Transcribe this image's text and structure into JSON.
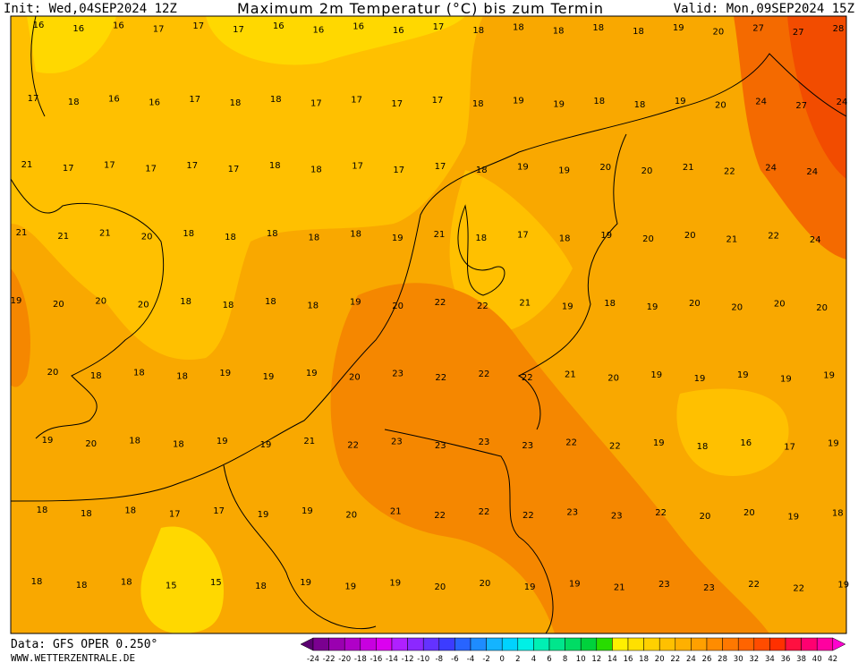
{
  "header": {
    "init": "Init: Wed,04SEP2024 12Z",
    "title": "Maximum 2m Temperatur (°C) bis zum Termin",
    "valid": "Valid: Mon,09SEP2024 15Z"
  },
  "map": {
    "rows": [
      [
        16,
        16,
        16,
        17,
        17,
        17,
        16,
        16,
        16,
        16,
        17,
        18,
        18,
        18,
        18,
        18,
        19,
        20,
        27,
        27,
        28
      ],
      [
        17,
        18,
        16,
        16,
        17,
        18,
        18,
        17,
        17,
        17,
        17,
        18,
        19,
        19,
        18,
        18,
        19,
        20,
        24,
        27,
        24
      ],
      [
        21,
        17,
        17,
        17,
        17,
        17,
        18,
        18,
        17,
        17,
        17,
        18,
        19,
        19,
        20,
        20,
        21,
        22,
        24,
        24
      ],
      [
        21,
        21,
        21,
        20,
        18,
        18,
        18,
        18,
        18,
        19,
        21,
        18,
        17,
        18,
        19,
        20,
        20,
        21,
        22,
        24
      ],
      [
        19,
        20,
        20,
        20,
        18,
        18,
        18,
        18,
        19,
        20,
        22,
        22,
        21,
        19,
        18,
        19,
        20,
        20,
        20,
        20
      ],
      [
        20,
        18,
        18,
        18,
        19,
        19,
        19,
        20,
        23,
        22,
        22,
        22,
        21,
        20,
        19,
        19,
        19,
        19,
        19
      ],
      [
        19,
        20,
        18,
        18,
        19,
        19,
        21,
        22,
        23,
        23,
        23,
        23,
        22,
        22,
        19,
        18,
        16,
        17,
        19
      ],
      [
        18,
        18,
        18,
        17,
        17,
        19,
        19,
        20,
        21,
        22,
        22,
        22,
        23,
        23,
        22,
        20,
        20,
        19,
        18
      ],
      [
        18,
        18,
        18,
        15,
        15,
        18,
        19,
        19,
        19,
        20,
        20,
        19,
        19,
        21,
        23,
        23,
        22,
        22,
        19
      ]
    ]
  },
  "colorbar": {
    "ticks": [
      -24,
      -22,
      -20,
      -18,
      -16,
      -14,
      -12,
      -10,
      -8,
      -6,
      -4,
      -2,
      0,
      2,
      4,
      6,
      8,
      10,
      12,
      14,
      16,
      18,
      20,
      22,
      24,
      26,
      28,
      30,
      32,
      34,
      36,
      38,
      40,
      42
    ]
  },
  "footer": {
    "data": "Data: GFS OPER 0.250°",
    "site": "WWW.WETTERZENTRALE.DE"
  }
}
